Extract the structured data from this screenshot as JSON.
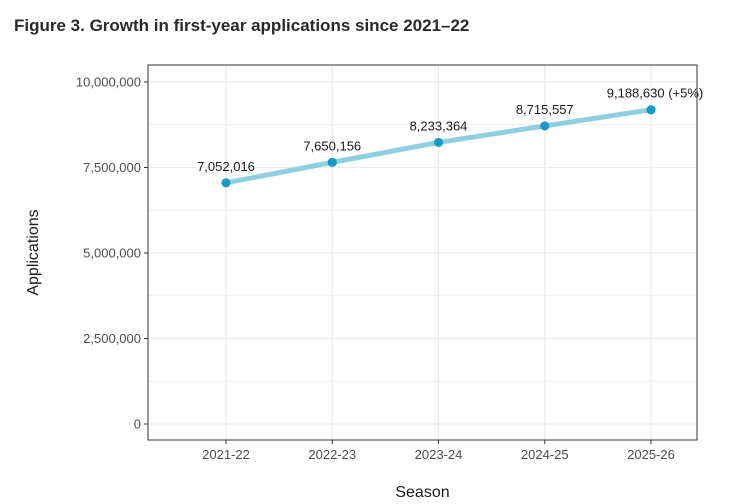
{
  "figure": {
    "title": "Figure 3. Growth in first-year applications since 2021–22"
  },
  "chart_data": {
    "type": "line",
    "title": "Figure 3. Growth in first-year applications since 2021–22",
    "xlabel": "Season",
    "ylabel": "Applications",
    "categories": [
      "2021-22",
      "2022-23",
      "2023-24",
      "2024-25",
      "2025-26"
    ],
    "series": [
      {
        "name": "Applications",
        "values": [
          7052016,
          7650156,
          8233364,
          8715557,
          9188630
        ],
        "labels": [
          "7,052,016",
          "7,650,156",
          "8,233,364",
          "8,715,557",
          "9,188,630 (+5%)"
        ]
      }
    ],
    "ylim": [
      0,
      10000000
    ],
    "yticks": [
      0,
      2500000,
      5000000,
      7500000,
      10000000
    ],
    "ytick_labels": [
      "0",
      "2,500,000",
      "5,000,000",
      "7,500,000",
      "10,000,000"
    ],
    "grid": true,
    "colors": {
      "line": "#8fd0e0",
      "point": "#1a9bc4",
      "grid": "#ebebeb",
      "frame": "#333333"
    }
  }
}
